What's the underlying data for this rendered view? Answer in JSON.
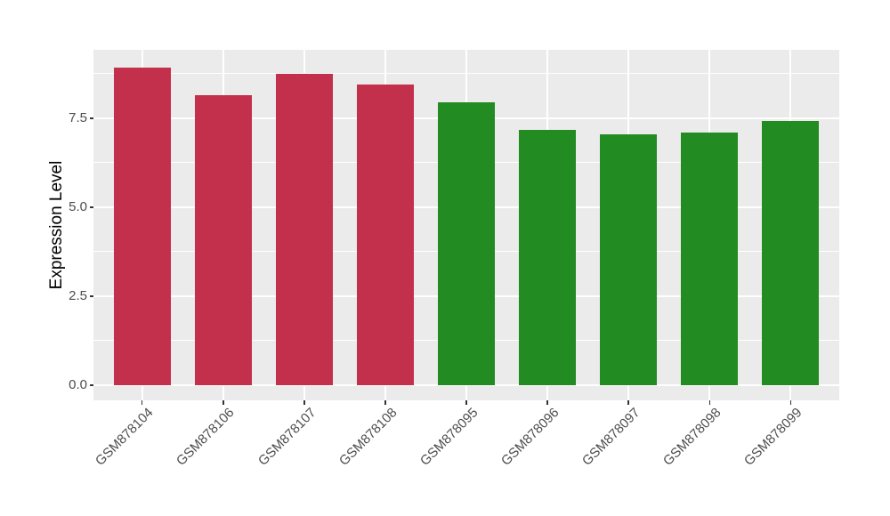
{
  "figure": {
    "background_color": "#FFFFFF",
    "panel_background_color": "#EBEBEB",
    "grid_color": "#FFFFFF",
    "tick_mark_color": "#333333",
    "axis_text_color": "#4D4D4D",
    "axis_title_color": "#000000"
  },
  "chart_data": {
    "type": "bar",
    "title": "",
    "xlabel": "",
    "ylabel": "Expression Level",
    "categories": [
      "GSM878104",
      "GSM878106",
      "GSM878107",
      "GSM878108",
      "GSM878095",
      "GSM878096",
      "GSM878097",
      "GSM878098",
      "GSM878099"
    ],
    "values": [
      8.93,
      8.15,
      8.75,
      8.44,
      7.94,
      7.17,
      7.05,
      7.09,
      7.42
    ],
    "bar_colors": [
      "#C2304C",
      "#C2304C",
      "#C2304C",
      "#C2304C",
      "#228B22",
      "#228B22",
      "#228B22",
      "#228B22",
      "#228B22"
    ],
    "color_groups": [
      {
        "color": "#C2304C",
        "categories": [
          "GSM878104",
          "GSM878106",
          "GSM878107",
          "GSM878108"
        ]
      },
      {
        "color": "#228B22",
        "categories": [
          "GSM878095",
          "GSM878096",
          "GSM878097",
          "GSM878098",
          "GSM878099"
        ]
      }
    ],
    "yticks": [
      0.0,
      2.5,
      5.0,
      7.5
    ],
    "ytick_labels": [
      "0.0",
      "2.5",
      "5.0",
      "7.5"
    ],
    "ylim": [
      -0.43,
      9.42
    ],
    "x_label_rotation_deg": 45,
    "grid": "major and minor horizontal white lines, vertical major lines at category centers",
    "legend": "none"
  }
}
